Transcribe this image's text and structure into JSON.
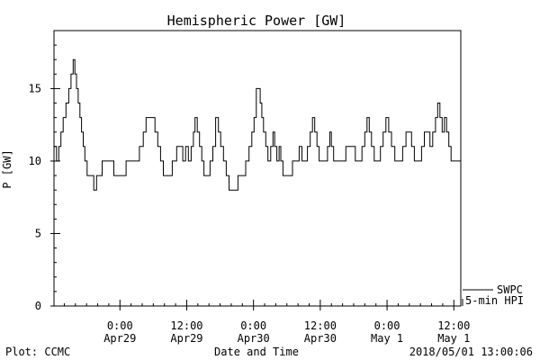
{
  "chart_data": {
    "type": "line",
    "title": "Hemispheric Power [GW]",
    "ylabel": "P [GW]",
    "xlabel": "Date and Time",
    "ylim": [
      0,
      19
    ],
    "y_ticks": [
      0,
      5,
      10,
      15
    ],
    "x_axis_unit": "hours since 2018-04-28 00:00 UT",
    "xlim": [
      12.15,
      85.25
    ],
    "x_ticks": [
      {
        "x": 24,
        "line1": "0:00",
        "line2": "Apr29"
      },
      {
        "x": 36,
        "line1": "12:00",
        "line2": "Apr29"
      },
      {
        "x": 48,
        "line1": "0:00",
        "line2": "Apr30"
      },
      {
        "x": 60,
        "line1": "12:00",
        "line2": "Apr30"
      },
      {
        "x": 72,
        "line1": "0:00",
        "line2": "May 1"
      },
      {
        "x": 84,
        "line1": "12:00",
        "line2": "May 1"
      }
    ],
    "series": [
      {
        "name": "SWPC",
        "label": "SWPC",
        "style": "step",
        "points": [
          [
            12.15,
            11
          ],
          [
            12.6,
            10
          ],
          [
            13.0,
            11
          ],
          [
            13.4,
            12
          ],
          [
            13.8,
            13
          ],
          [
            14.3,
            14
          ],
          [
            14.8,
            15
          ],
          [
            15.2,
            16
          ],
          [
            15.6,
            17
          ],
          [
            15.9,
            16
          ],
          [
            16.2,
            15
          ],
          [
            16.5,
            14
          ],
          [
            16.8,
            13
          ],
          [
            17.1,
            12
          ],
          [
            17.4,
            11
          ],
          [
            17.7,
            10
          ],
          [
            18.1,
            9
          ],
          [
            18.6,
            9
          ],
          [
            19.3,
            8
          ],
          [
            19.8,
            9
          ],
          [
            20.3,
            9
          ],
          [
            20.8,
            10
          ],
          [
            21.5,
            10
          ],
          [
            22.2,
            10
          ],
          [
            22.9,
            9
          ],
          [
            23.7,
            9
          ],
          [
            24.5,
            9
          ],
          [
            25.1,
            10
          ],
          [
            25.6,
            10
          ],
          [
            26.3,
            10
          ],
          [
            26.8,
            10
          ],
          [
            27.5,
            11
          ],
          [
            28.2,
            12
          ],
          [
            28.7,
            13
          ],
          [
            29.8,
            13
          ],
          [
            30.3,
            12
          ],
          [
            30.8,
            11
          ],
          [
            31.3,
            10
          ],
          [
            31.8,
            9
          ],
          [
            32.8,
            9
          ],
          [
            33.4,
            10
          ],
          [
            34.2,
            11
          ],
          [
            34.8,
            11
          ],
          [
            35.3,
            10
          ],
          [
            35.8,
            11
          ],
          [
            36.3,
            10
          ],
          [
            36.8,
            11
          ],
          [
            37.2,
            12
          ],
          [
            37.5,
            13
          ],
          [
            37.9,
            12
          ],
          [
            38.3,
            11
          ],
          [
            38.7,
            10
          ],
          [
            39.1,
            9
          ],
          [
            39.6,
            9
          ],
          [
            40.2,
            10
          ],
          [
            40.7,
            11
          ],
          [
            41.2,
            13
          ],
          [
            41.7,
            12
          ],
          [
            42.1,
            11
          ],
          [
            42.6,
            10
          ],
          [
            43.1,
            9
          ],
          [
            43.6,
            8
          ],
          [
            44.6,
            8
          ],
          [
            45.2,
            9
          ],
          [
            45.8,
            9
          ],
          [
            46.6,
            10
          ],
          [
            47.2,
            11
          ],
          [
            47.7,
            12
          ],
          [
            48.1,
            13
          ],
          [
            48.5,
            15
          ],
          [
            48.9,
            15
          ],
          [
            49.2,
            14
          ],
          [
            49.5,
            13
          ],
          [
            49.8,
            12
          ],
          [
            50.2,
            11
          ],
          [
            50.6,
            10
          ],
          [
            51.1,
            11
          ],
          [
            51.5,
            12
          ],
          [
            51.8,
            11
          ],
          [
            52.2,
            10
          ],
          [
            52.6,
            11
          ],
          [
            52.9,
            10
          ],
          [
            53.3,
            9
          ],
          [
            53.8,
            9
          ],
          [
            54.4,
            9
          ],
          [
            55.0,
            10
          ],
          [
            55.6,
            10
          ],
          [
            56.2,
            11
          ],
          [
            56.7,
            10
          ],
          [
            57.2,
            10
          ],
          [
            57.7,
            11
          ],
          [
            58.2,
            12
          ],
          [
            58.6,
            13
          ],
          [
            59.0,
            12
          ],
          [
            59.4,
            11
          ],
          [
            59.8,
            10
          ],
          [
            60.3,
            10
          ],
          [
            60.8,
            10
          ],
          [
            61.3,
            11
          ],
          [
            61.7,
            12
          ],
          [
            62.0,
            11
          ],
          [
            62.4,
            10
          ],
          [
            62.9,
            10
          ],
          [
            63.4,
            10
          ],
          [
            64.0,
            10
          ],
          [
            64.6,
            11
          ],
          [
            65.2,
            11
          ],
          [
            65.8,
            11
          ],
          [
            66.3,
            10
          ],
          [
            66.9,
            10
          ],
          [
            67.5,
            11
          ],
          [
            68.0,
            12
          ],
          [
            68.4,
            13
          ],
          [
            68.8,
            12
          ],
          [
            69.2,
            11
          ],
          [
            69.7,
            10
          ],
          [
            70.2,
            10
          ],
          [
            70.8,
            11
          ],
          [
            71.3,
            12
          ],
          [
            71.8,
            13
          ],
          [
            72.3,
            12
          ],
          [
            72.8,
            11
          ],
          [
            73.4,
            10
          ],
          [
            74.1,
            10
          ],
          [
            74.8,
            11
          ],
          [
            75.4,
            12
          ],
          [
            75.9,
            12
          ],
          [
            76.4,
            11
          ],
          [
            76.9,
            10
          ],
          [
            77.5,
            10
          ],
          [
            78.2,
            11
          ],
          [
            78.7,
            12
          ],
          [
            79.2,
            12
          ],
          [
            79.7,
            11
          ],
          [
            80.2,
            12
          ],
          [
            80.7,
            13
          ],
          [
            81.1,
            14
          ],
          [
            81.5,
            13
          ],
          [
            81.9,
            12
          ],
          [
            82.3,
            13
          ],
          [
            82.7,
            12
          ],
          [
            83.1,
            11
          ],
          [
            83.5,
            10
          ],
          [
            84.0,
            10
          ],
          [
            84.5,
            10
          ],
          [
            84.9,
            10
          ],
          [
            85.25,
            9
          ]
        ]
      }
    ],
    "legend": {
      "position": "bottom-right-outside",
      "entries": [
        "SWPC",
        "5-min HPI"
      ]
    }
  },
  "footer": {
    "left": "Plot: CCMC",
    "center": "Date and Time",
    "right": "2018/05/01 13:00:06"
  }
}
